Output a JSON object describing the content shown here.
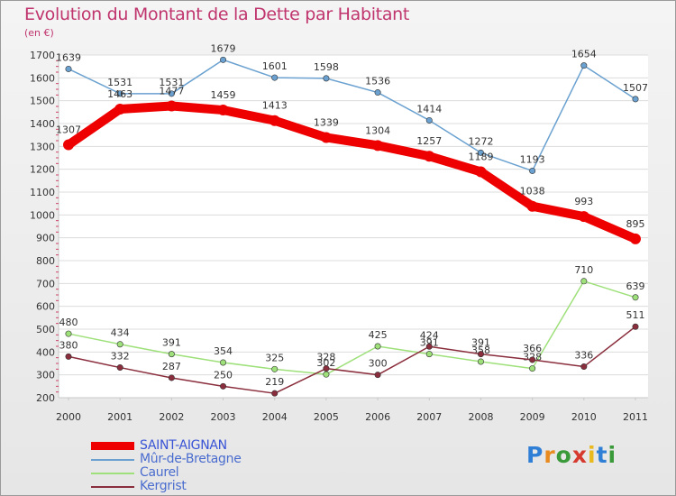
{
  "chart_data": {
    "type": "line",
    "title": "Evolution du Montant de la Dette par Habitant",
    "ylabel": "(en €)",
    "xlabel": "",
    "x": [
      "2000",
      "2001",
      "2002",
      "2003",
      "2004",
      "2005",
      "2006",
      "2007",
      "2008",
      "2009",
      "2010",
      "2011"
    ],
    "yticks": [
      "200",
      "300",
      "400",
      "500",
      "600",
      "700",
      "800",
      "900",
      "1000",
      "1100",
      "1200",
      "1300",
      "1400",
      "1500",
      "1600",
      "1700"
    ],
    "ylim": [
      200,
      1700
    ],
    "legend_position": "bottom-left",
    "series": [
      {
        "name": "SAINT-AIGNAN",
        "color": "#ee0000",
        "values": [
          1307,
          1463,
          1477,
          1459,
          1413,
          1339,
          1304,
          1257,
          1189,
          1038,
          993,
          895
        ],
        "labels": [
          "1307",
          "1463",
          "1477",
          "1459",
          "1413",
          "1339",
          "1304",
          "1257",
          "1189",
          "1038",
          "993",
          "895"
        ]
      },
      {
        "name": "Mûr-de-Bretagne",
        "color": "#6aa1d0",
        "values": [
          1639,
          1531,
          1531,
          1679,
          1601,
          1598,
          1536,
          1414,
          1272,
          1193,
          1654,
          1507
        ],
        "labels": [
          "1639",
          "1531",
          "1531",
          "1679",
          "1601",
          "1598",
          "1536",
          "1414",
          "1272",
          "1193",
          "1654",
          "1507"
        ]
      },
      {
        "name": "Caurel",
        "color": "#9ee07a",
        "values": [
          480,
          434,
          391,
          354,
          325,
          302,
          425,
          391,
          358,
          328,
          710,
          639
        ],
        "labels": [
          "480",
          "434",
          "391",
          "354",
          "325",
          "302",
          "425",
          "391",
          "358",
          "328",
          "710",
          "639"
        ]
      },
      {
        "name": "Kergrist",
        "color": "#8a2d3c",
        "values": [
          380,
          332,
          287,
          250,
          219,
          328,
          300,
          424,
          391,
          366,
          336,
          511
        ],
        "labels": [
          "380",
          "332",
          "287",
          "250",
          "219",
          "328",
          "300",
          "424",
          "391",
          "366",
          "336",
          "511"
        ]
      }
    ]
  },
  "logo": {
    "text": "Proxiti",
    "letters": [
      "P",
      "r",
      "o",
      "x",
      "i",
      "t",
      "i"
    ]
  }
}
